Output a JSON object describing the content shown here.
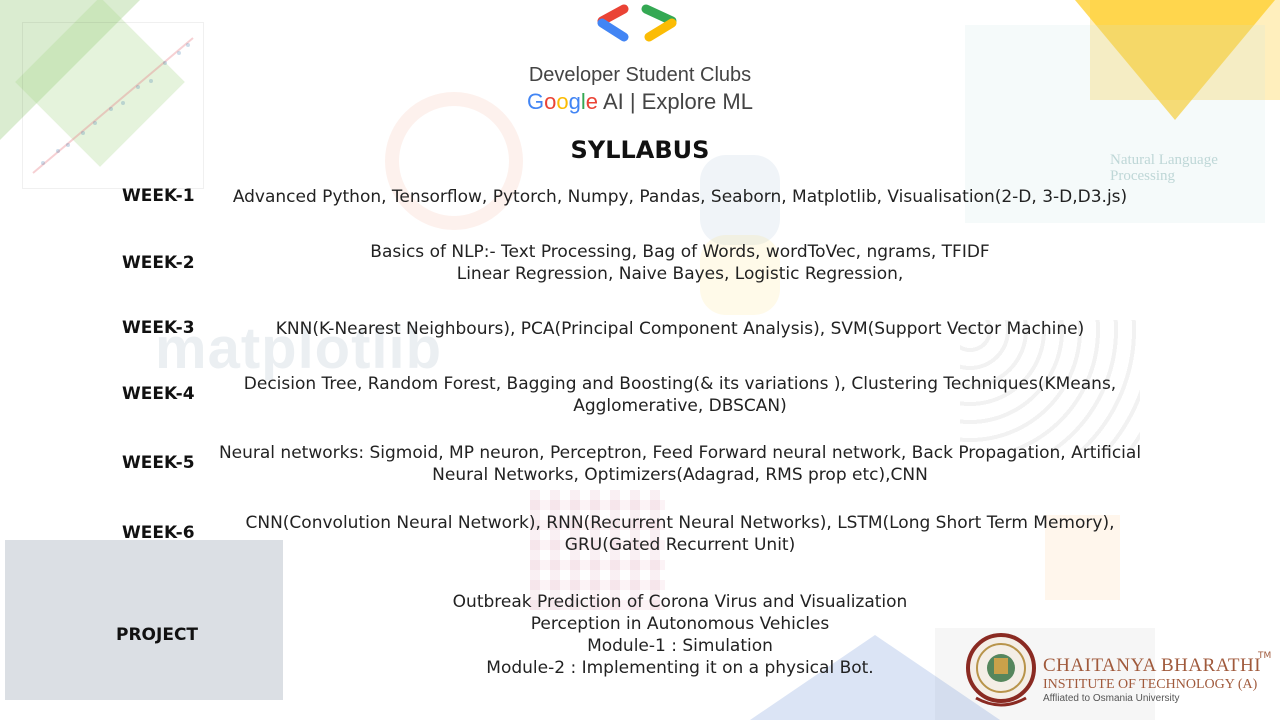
{
  "header": {
    "line1": "Developer Student Clubs",
    "google_letters": [
      "G",
      "o",
      "o",
      "g",
      "l",
      "e"
    ],
    "line2_rest": " AI | Explore ML"
  },
  "title": "SYLLABUS",
  "weeks": [
    {
      "label": "WEEK-1",
      "lines": [
        "Advanced Python, Tensorflow, Pytorch, Numpy, Pandas,  Seaborn, Matplotlib,  Visualisation(2-D, 3-D,D3.js)"
      ]
    },
    {
      "label": "WEEK-2",
      "lines": [
        "Basics of NLP:- Text Processing, Bag of Words, wordToVec, ngrams, TFIDF",
        "Linear Regression, Naive Bayes, Logistic Regression,"
      ]
    },
    {
      "label": "WEEK-3",
      "lines": [
        "KNN(K-Nearest Neighbours), PCA(Principal Component Analysis), SVM(Support Vector Machine)"
      ]
    },
    {
      "label": "WEEK-4",
      "lines": [
        "Decision Tree, Random Forest, Bagging and Boosting(& its variations ), Clustering Techniques(KMeans,",
        "Agglomerative, DBSCAN)"
      ]
    },
    {
      "label": "WEEK-5",
      "lines": [
        "Neural networks: Sigmoid, MP neuron, Perceptron, Feed Forward neural network, Back Propagation, Artificial",
        "Neural Networks, Optimizers(Adagrad, RMS prop etc),CNN"
      ]
    },
    {
      "label": "WEEK-6",
      "lines": [
        "CNN(Convolution Neural Network), RNN(Recurrent Neural Networks), LSTM(Long Short Term Memory),",
        "GRU(Gated Recurrent Unit)"
      ]
    }
  ],
  "project": {
    "label": "PROJECT",
    "lines": [
      "Outbreak Prediction of Corona Virus and Visualization",
      "Perception in Autonomous Vehicles",
      "Module-1 : Simulation",
      "Module-2 : Implementing it on a physical Bot."
    ]
  },
  "watermarks": {
    "nlp": [
      "Natural Language",
      "Processing"
    ],
    "matplotlib": "matplotlib"
  },
  "institute": {
    "name": "CHAITANYA BHARATHI",
    "tm": "TM",
    "sub": "INSTITUTE OF TECHNOLOGY (A)",
    "affiliation": "Affliated to Osmania University"
  },
  "colors": {
    "google_blue": "#4285F4",
    "google_red": "#EA4335",
    "google_yellow": "#FBBC05",
    "google_green": "#34A853",
    "cbit_brown": "#a05a3c"
  },
  "icons": [
    "dsc-logo-icon",
    "cbit-seal-icon"
  ]
}
